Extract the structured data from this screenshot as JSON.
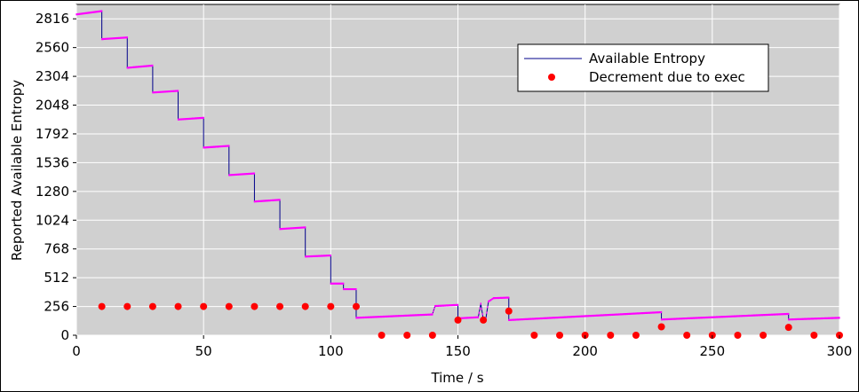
{
  "chart_data": {
    "type": "line",
    "title": "",
    "xlabel": "Time / s",
    "ylabel": "Reported Available Entropy",
    "xlim": [
      0,
      300
    ],
    "ylim": [
      0,
      2944
    ],
    "x_ticks": [
      0,
      50,
      100,
      150,
      200,
      250,
      300
    ],
    "y_ticks": [
      0,
      256,
      512,
      768,
      1024,
      1280,
      1536,
      1792,
      2048,
      2304,
      2560,
      2816
    ],
    "grid": true,
    "legend_position": "top-right",
    "colors": {
      "line": "#00008b",
      "markers": "#ff00ff",
      "exec": "#ff0000"
    },
    "series": [
      {
        "name": "Available Entropy",
        "kind": "line",
        "segments": [
          [
            [
              0,
              2855
            ],
            [
              10,
              2885
            ]
          ],
          [
            [
              10,
              2635
            ],
            [
              20,
              2650
            ]
          ],
          [
            [
              20,
              2380
            ],
            [
              30,
              2400
            ]
          ],
          [
            [
              30,
              2160
            ],
            [
              40,
              2175
            ]
          ],
          [
            [
              40,
              1920
            ],
            [
              50,
              1935
            ]
          ],
          [
            [
              50,
              1670
            ],
            [
              60,
              1685
            ]
          ],
          [
            [
              60,
              1425
            ],
            [
              70,
              1440
            ]
          ],
          [
            [
              70,
              1190
            ],
            [
              80,
              1205
            ]
          ],
          [
            [
              80,
              945
            ],
            [
              90,
              960
            ]
          ],
          [
            [
              90,
              700
            ],
            [
              100,
              710
            ]
          ],
          [
            [
              100,
              460
            ],
            [
              105,
              460
            ]
          ],
          [
            [
              105,
              410
            ],
            [
              110,
              410
            ]
          ],
          [
            [
              110,
              155
            ],
            [
              140,
              185
            ]
          ],
          [
            [
              140,
              190
            ],
            [
              141,
              260
            ],
            [
              150,
              270
            ]
          ],
          [
            [
              150,
              150
            ],
            [
              158,
              160
            ],
            [
              159,
              280
            ],
            [
              160,
              140
            ],
            [
              161,
              150
            ],
            [
              162,
              300
            ],
            [
              164,
              330
            ],
            [
              170,
              335
            ]
          ],
          [
            [
              170,
              135
            ],
            [
              230,
              205
            ]
          ],
          [
            [
              230,
              140
            ],
            [
              280,
              190
            ]
          ],
          [
            [
              280,
              140
            ],
            [
              300,
              155
            ]
          ]
        ]
      },
      {
        "name": "Decrement due to exec",
        "kind": "scatter",
        "x": [
          10,
          20,
          30,
          40,
          50,
          60,
          70,
          80,
          90,
          100,
          110,
          120,
          130,
          140,
          150,
          160,
          170,
          180,
          190,
          200,
          210,
          220,
          230,
          240,
          250,
          260,
          270,
          280,
          290,
          300
        ],
        "y": [
          256,
          256,
          256,
          256,
          256,
          256,
          256,
          256,
          256,
          256,
          256,
          0,
          0,
          0,
          135,
          135,
          215,
          0,
          0,
          0,
          0,
          0,
          75,
          0,
          0,
          0,
          0,
          70,
          0,
          0
        ]
      }
    ]
  }
}
